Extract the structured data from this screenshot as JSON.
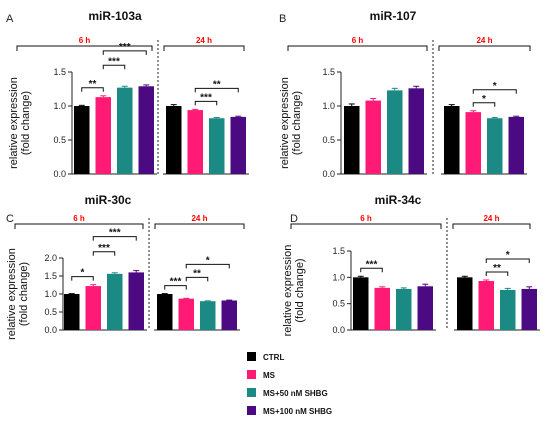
{
  "colors": {
    "group_label": "#ff0000",
    "series": [
      "#000000",
      "#ff1a75",
      "#1b8a84",
      "#4b0a82"
    ]
  },
  "legend": [
    {
      "label": "CTRL",
      "color": "#000000"
    },
    {
      "label": "MS",
      "color": "#ff1a75"
    },
    {
      "label": "MS+50 nM SHBG",
      "color": "#1b8a84"
    },
    {
      "label": "MS+100 nM SHBG",
      "color": "#4b0a82"
    }
  ],
  "chart_data": [
    {
      "type": "bar",
      "panel": "A",
      "title": "miR-103a",
      "ylabel": [
        "relative expression",
        "(fold change)"
      ],
      "ylim": [
        0,
        1.5
      ],
      "yticks": [
        "0.0",
        "0.5",
        "1.0",
        "1.5"
      ],
      "groups": [
        {
          "label": "6 h",
          "values": [
            1.0,
            1.13,
            1.27,
            1.29
          ],
          "errors": [
            0.01,
            0.02,
            0.02,
            0.02
          ]
        },
        {
          "label": "24 h",
          "values": [
            1.0,
            0.94,
            0.82,
            0.84
          ],
          "errors": [
            0.02,
            0.01,
            0.01,
            0.01
          ]
        }
      ],
      "significance": [
        {
          "group": 0,
          "from": 0,
          "to": 1,
          "label": "**"
        },
        {
          "group": 0,
          "from": 1,
          "to": 2,
          "label": "***"
        },
        {
          "group": 0,
          "from": 1,
          "to": 3,
          "label": "***"
        },
        {
          "group": 1,
          "from": 1,
          "to": 2,
          "label": "***"
        },
        {
          "group": 1,
          "from": 1,
          "to": 3,
          "label": "**"
        }
      ]
    },
    {
      "type": "bar",
      "panel": "B",
      "title": "miR-107",
      "ylabel": [
        "relative expression",
        "(fold change)"
      ],
      "ylim": [
        0,
        1.5
      ],
      "yticks": [
        "0.0",
        "0.5",
        "1.0",
        "1.5"
      ],
      "groups": [
        {
          "label": "6 h",
          "values": [
            1.0,
            1.08,
            1.23,
            1.26
          ],
          "errors": [
            0.03,
            0.03,
            0.03,
            0.03
          ]
        },
        {
          "label": "24 h",
          "values": [
            1.0,
            0.91,
            0.82,
            0.84
          ],
          "errors": [
            0.02,
            0.02,
            0.01,
            0.01
          ]
        }
      ],
      "significance": [
        {
          "group": 1,
          "from": 1,
          "to": 2,
          "label": "*"
        },
        {
          "group": 1,
          "from": 1,
          "to": 3,
          "label": "*"
        }
      ]
    },
    {
      "type": "bar",
      "panel": "C",
      "title": "miR-30c",
      "ylabel": [
        "relative expression",
        "(fold change)"
      ],
      "ylim": [
        0,
        2.0
      ],
      "yticks": [
        "0.0",
        "0.5",
        "1.0",
        "1.5",
        "2.0"
      ],
      "groups": [
        {
          "label": "6 h",
          "values": [
            1.0,
            1.22,
            1.56,
            1.6
          ],
          "errors": [
            0.01,
            0.04,
            0.03,
            0.05
          ]
        },
        {
          "label": "24 h",
          "values": [
            1.0,
            0.87,
            0.8,
            0.82
          ],
          "errors": [
            0.01,
            0.01,
            0.01,
            0.01
          ]
        }
      ],
      "significance": [
        {
          "group": 0,
          "from": 0,
          "to": 1,
          "label": "*"
        },
        {
          "group": 0,
          "from": 1,
          "to": 2,
          "label": "***"
        },
        {
          "group": 0,
          "from": 1,
          "to": 3,
          "label": "***"
        },
        {
          "group": 1,
          "from": 0,
          "to": 1,
          "label": "***"
        },
        {
          "group": 1,
          "from": 1,
          "to": 2,
          "label": "**"
        },
        {
          "group": 1,
          "from": 1,
          "to": 3,
          "label": "*"
        }
      ]
    },
    {
      "type": "bar",
      "panel": "D",
      "title": "miR-34c",
      "ylabel": [
        "relative expression",
        "(fold change)"
      ],
      "ylim": [
        0,
        1.5
      ],
      "yticks": [
        "0.0",
        "0.5",
        "1.0",
        "1.5"
      ],
      "groups": [
        {
          "label": "6 h",
          "values": [
            1.0,
            0.8,
            0.78,
            0.83
          ],
          "errors": [
            0.02,
            0.02,
            0.02,
            0.04
          ]
        },
        {
          "label": "24 h",
          "values": [
            1.0,
            0.93,
            0.76,
            0.78
          ],
          "errors": [
            0.02,
            0.02,
            0.03,
            0.04
          ]
        }
      ],
      "significance": [
        {
          "group": 0,
          "from": 0,
          "to": 1,
          "label": "***"
        },
        {
          "group": 1,
          "from": 1,
          "to": 2,
          "label": "**"
        },
        {
          "group": 1,
          "from": 1,
          "to": 3,
          "label": "*"
        }
      ]
    }
  ]
}
